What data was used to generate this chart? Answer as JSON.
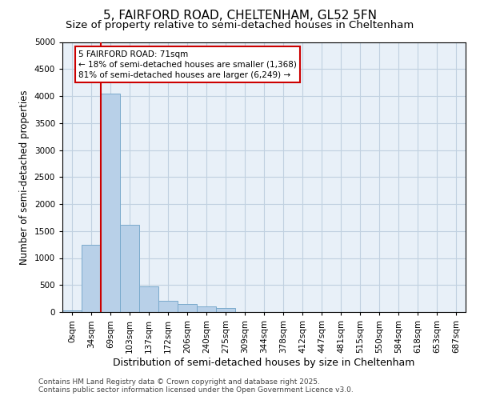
{
  "title1": "5, FAIRFORD ROAD, CHELTENHAM, GL52 5FN",
  "title2": "Size of property relative to semi-detached houses in Cheltenham",
  "xlabel": "Distribution of semi-detached houses by size in Cheltenham",
  "ylabel": "Number of semi-detached properties",
  "footnote1": "Contains HM Land Registry data © Crown copyright and database right 2025.",
  "footnote2": "Contains public sector information licensed under the Open Government Licence v3.0.",
  "categories": [
    "0sqm",
    "34sqm",
    "69sqm",
    "103sqm",
    "137sqm",
    "172sqm",
    "206sqm",
    "240sqm",
    "275sqm",
    "309sqm",
    "344sqm",
    "378sqm",
    "412sqm",
    "447sqm",
    "481sqm",
    "515sqm",
    "550sqm",
    "584sqm",
    "618sqm",
    "653sqm",
    "687sqm"
  ],
  "values": [
    30,
    1250,
    4050,
    1620,
    470,
    210,
    150,
    100,
    70,
    0,
    0,
    0,
    0,
    0,
    0,
    0,
    0,
    0,
    0,
    0,
    0
  ],
  "bar_color": "#b8d0e8",
  "bar_edge_color": "#7aaacc",
  "vline_color": "#cc0000",
  "vline_x_index": 2,
  "annotation_line1": "5 FAIRFORD ROAD: 71sqm",
  "annotation_line2": "← 18% of semi-detached houses are smaller (1,368)",
  "annotation_line3": "81% of semi-detached houses are larger (6,249) →",
  "ylim": [
    0,
    5000
  ],
  "yticks": [
    0,
    500,
    1000,
    1500,
    2000,
    2500,
    3000,
    3500,
    4000,
    4500,
    5000
  ],
  "bg_color": "#ffffff",
  "plot_bg_color": "#e8f0f8",
  "grid_color": "#c0d0e0",
  "title1_fontsize": 11,
  "title2_fontsize": 9.5,
  "xlabel_fontsize": 9,
  "ylabel_fontsize": 8.5,
  "tick_fontsize": 7.5,
  "annotation_fontsize": 7.5,
  "footnote_fontsize": 6.5
}
